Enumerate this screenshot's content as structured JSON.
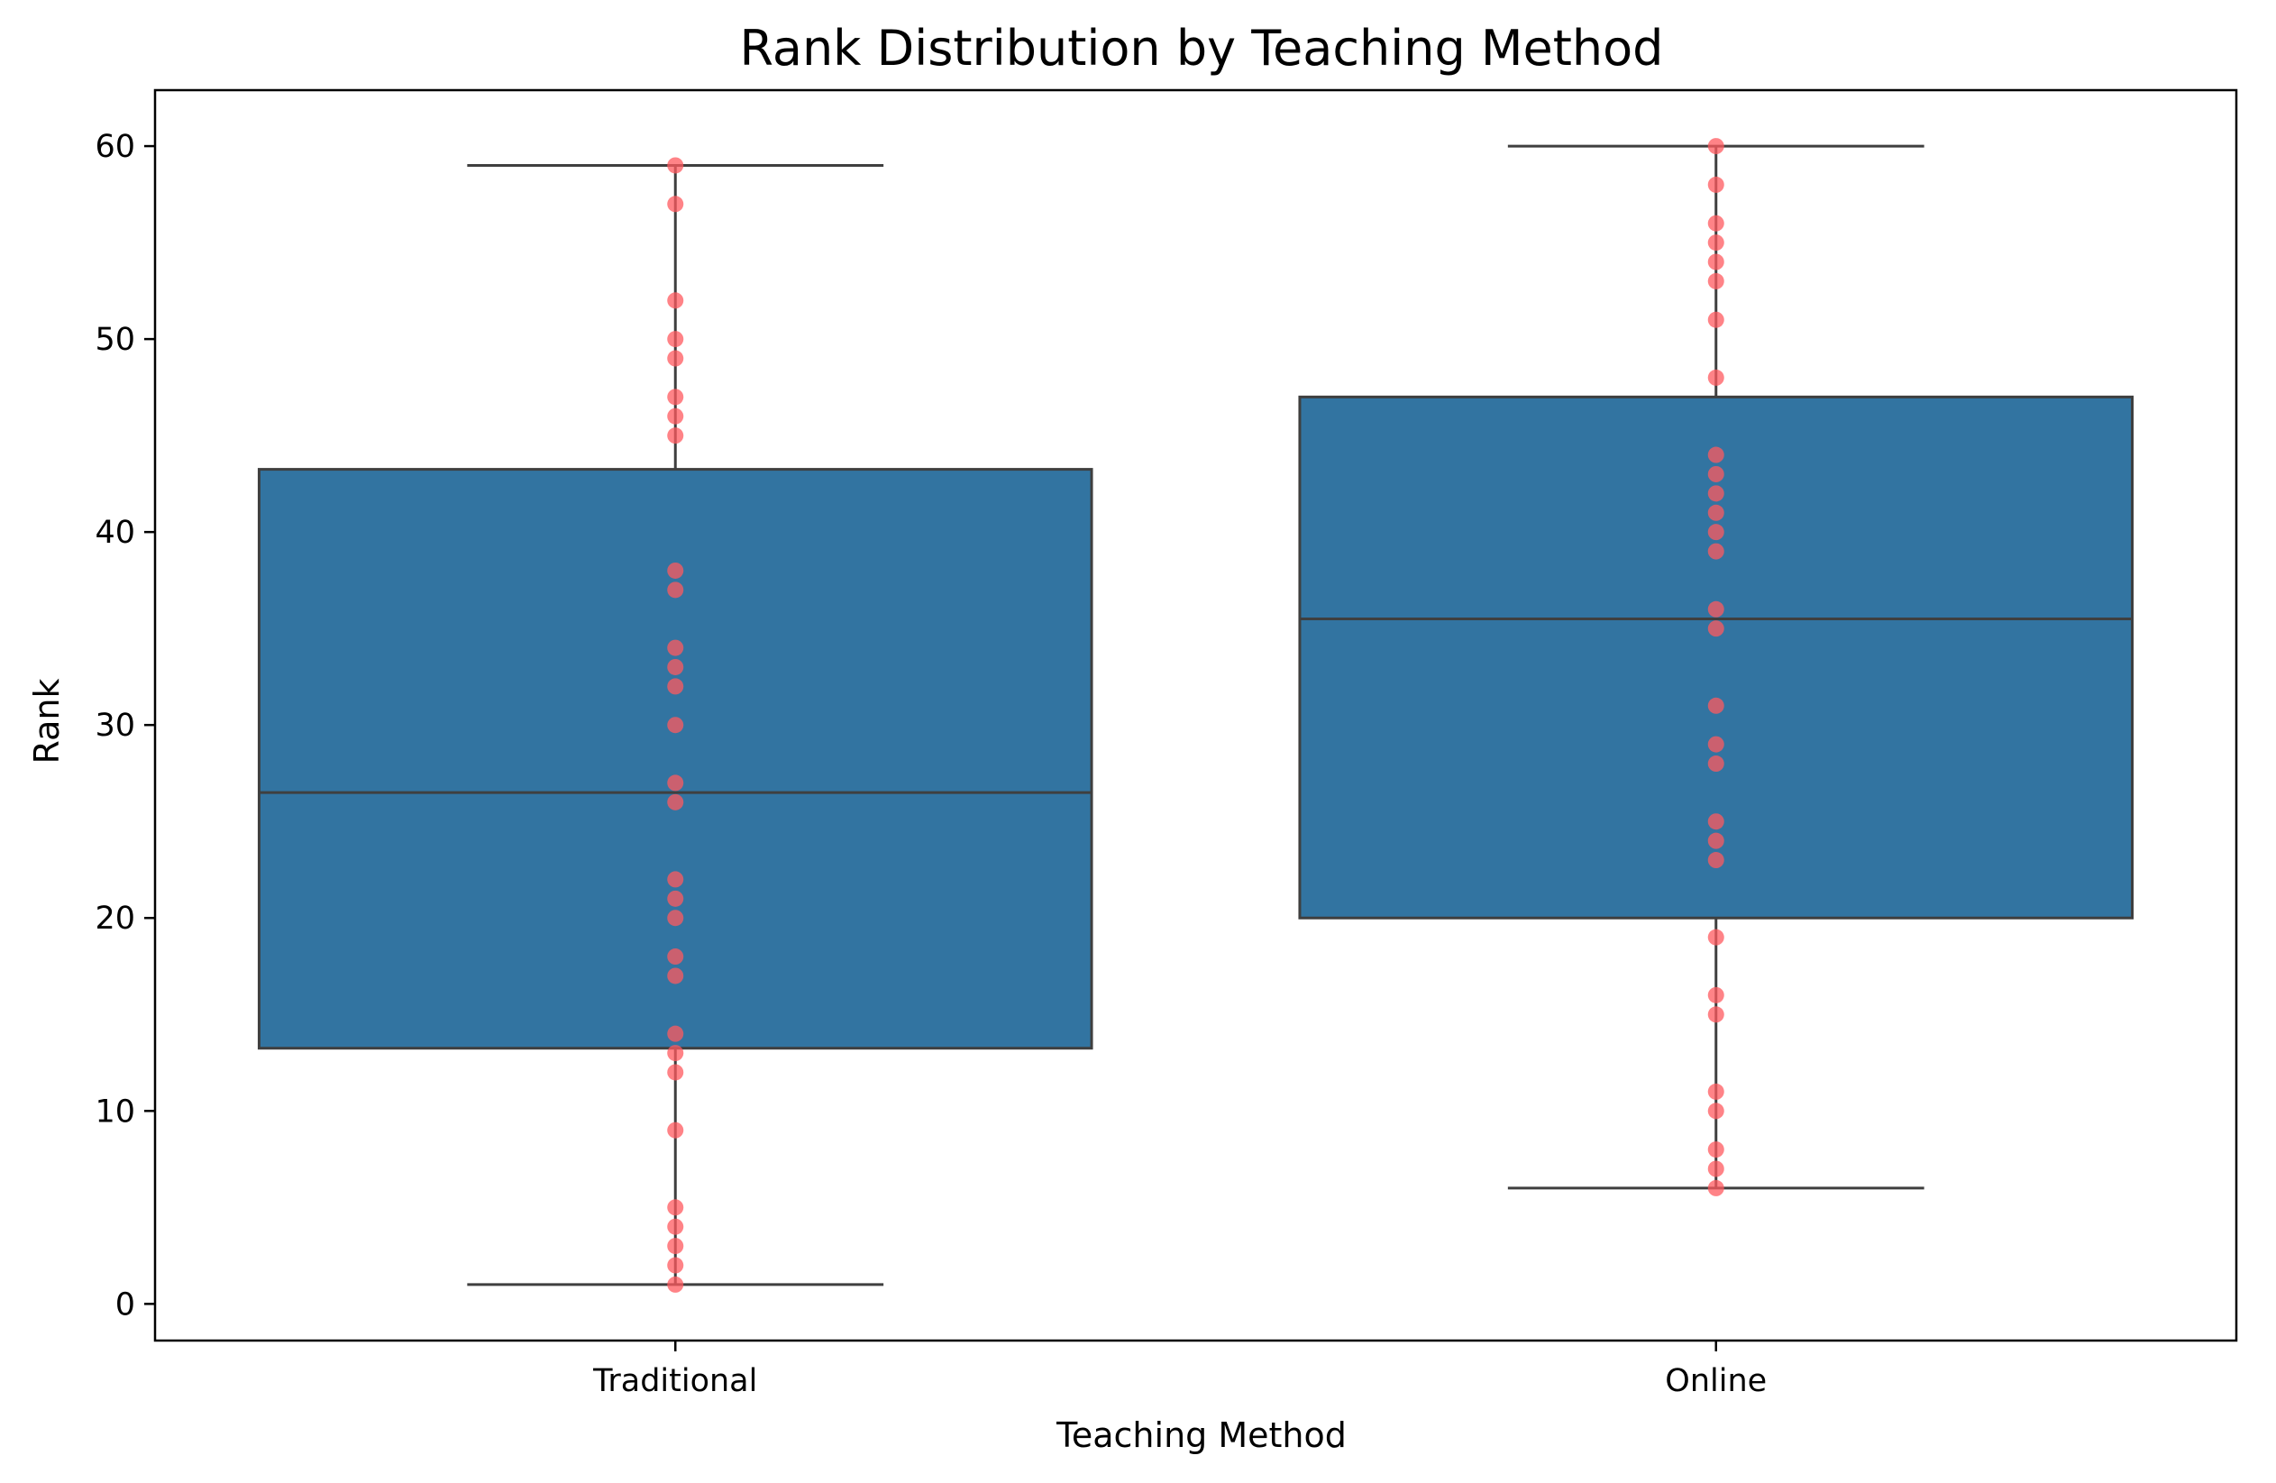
{
  "chart_data": {
    "type": "box",
    "title": "Rank Distribution by Teaching Method",
    "xlabel": "Teaching Method",
    "ylabel": "Rank",
    "categories": [
      "Traditional",
      "Online"
    ],
    "ylim": [
      -1.9,
      62.9
    ],
    "yticks": [
      0,
      10,
      20,
      30,
      40,
      50,
      60
    ],
    "colors": {
      "box": "#3274a1",
      "line": "#3f3f3f",
      "point": "#ff5a5f"
    },
    "boxes": [
      {
        "category": "Traditional",
        "whisker_low": 1,
        "q1": 13.25,
        "median": 26.5,
        "q3": 43.25,
        "whisker_high": 59
      },
      {
        "category": "Online",
        "whisker_low": 6,
        "q1": 20,
        "median": 35.5,
        "q3": 47,
        "whisker_high": 60
      }
    ],
    "points": [
      {
        "category": "Traditional",
        "values": [
          1,
          2,
          3,
          4,
          5,
          9,
          12,
          13,
          14,
          17,
          18,
          20,
          21,
          22,
          26,
          27,
          30,
          32,
          33,
          34,
          37,
          38,
          45,
          46,
          47,
          49,
          50,
          52,
          57,
          59
        ]
      },
      {
        "category": "Online",
        "values": [
          6,
          7,
          8,
          10,
          11,
          15,
          16,
          19,
          23,
          24,
          25,
          28,
          29,
          31,
          35,
          36,
          39,
          40,
          41,
          42,
          43,
          44,
          48,
          51,
          53,
          54,
          55,
          56,
          58,
          60
        ]
      }
    ]
  }
}
